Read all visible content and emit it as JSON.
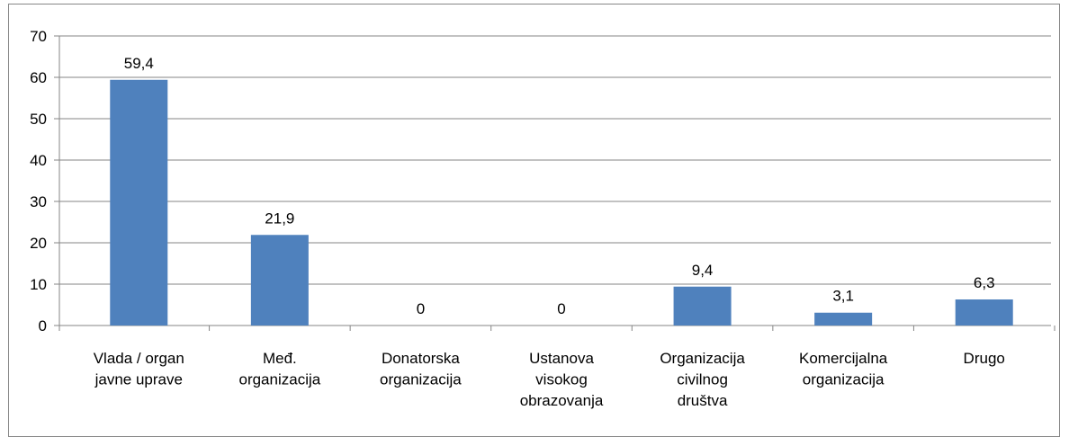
{
  "chart_data": {
    "type": "bar",
    "categories": [
      "Vlada / organ\njavne uprave",
      "Međ.\norganizacija",
      "Donatorska\norganizacija",
      "Ustanova\nvisokog\nobrazovanja",
      "Organizacija\ncivilnog\ndruštva",
      "Komercijalna\norganizacija",
      "Drugo"
    ],
    "values": [
      59.4,
      21.9,
      0,
      0,
      9.4,
      3.1,
      6.3
    ],
    "value_labels": [
      "59,4",
      "21,9",
      "0",
      "0",
      "9,4",
      "3,1",
      "6,3"
    ],
    "color": "#4f81bd",
    "ylim": [
      0,
      70
    ],
    "yticks": [
      0,
      10,
      20,
      30,
      40,
      50,
      60,
      70
    ],
    "grid": true
  }
}
